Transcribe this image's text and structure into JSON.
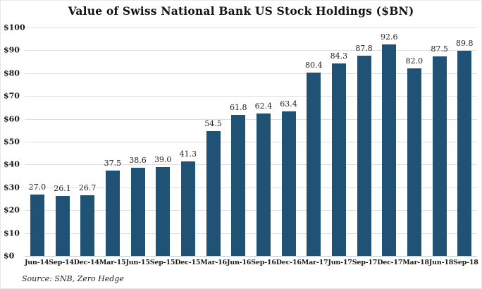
{
  "title": "Value of Swiss National Bank US Stock Holdings ($BN)",
  "source": "Source: SNB, Zero Hedge",
  "chart_data": {
    "type": "bar",
    "title": "Value of Swiss National Bank US Stock Holdings ($BN)",
    "categories": [
      "Jun-14",
      "Sep-14",
      "Dec-14",
      "Mar-15",
      "Jun-15",
      "Sep-15",
      "Dec-15",
      "Mar-16",
      "Jun-16",
      "Sep-16",
      "Dec-16",
      "Mar-17",
      "Jun-17",
      "Sep-17",
      "Dec-17",
      "Mar-18",
      "Jun-18",
      "Sep-18"
    ],
    "values": [
      27.0,
      26.1,
      26.7,
      37.5,
      38.6,
      39.0,
      41.3,
      54.5,
      61.8,
      62.4,
      63.4,
      80.4,
      84.3,
      87.8,
      92.6,
      82.0,
      87.5,
      89.8
    ],
    "value_labels": [
      "27.0",
      "26.1",
      "26.7",
      "37.5",
      "38.6",
      "39.0",
      "41.3",
      "54.5",
      "61.8",
      "62.4",
      "63.4",
      "80.4",
      "84.3",
      "87.8",
      "92.6",
      "82.0",
      "87.5",
      "89.8"
    ],
    "xlabel": "",
    "ylabel": "",
    "ylim": [
      0,
      100
    ],
    "y_tick_step": 10,
    "y_tick_prefix": "$",
    "grid": true,
    "legend": "none",
    "bar_color": "#1f5275",
    "grid_color": "#dedede",
    "axis_line_color": "#c6c6c6",
    "value_label_color": "#222222",
    "tick_label_color": "#1a1a1a"
  }
}
